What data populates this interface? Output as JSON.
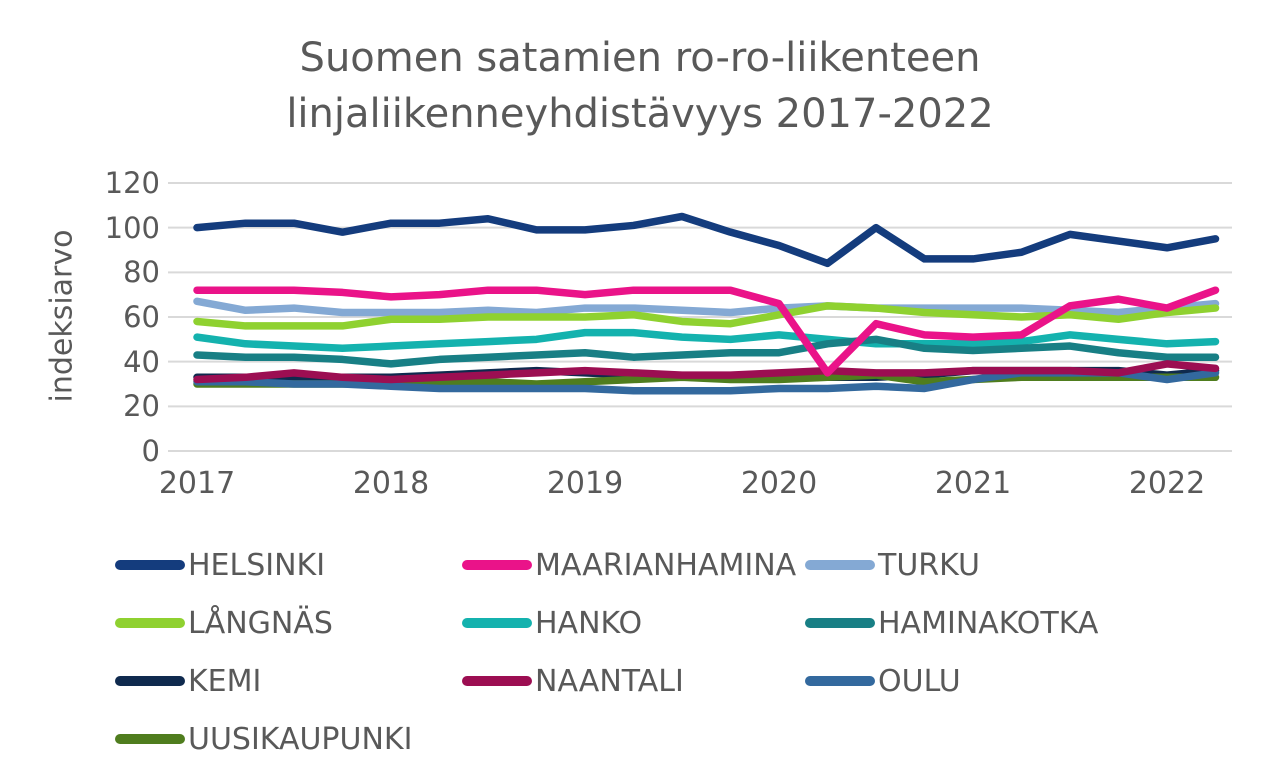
{
  "chart": {
    "title_line1": "Suomen satamien ro-ro-liikenteen",
    "title_line2": "linjaliikenneyhdistävyys 2017-2022",
    "ylabel": "indeksiarvo",
    "text_color": "#595959",
    "gridline_color": "#D9D9D9",
    "background_color": "#FFFFFF"
  },
  "chart_data": {
    "type": "line",
    "title": "Suomen satamien ro-ro-liikenteen linjaliikenneyhdistävyys 2017-2022",
    "xlabel": "",
    "ylabel": "indeksiarvo",
    "x_tick_labels": [
      "2017",
      "2018",
      "2019",
      "2020",
      "2021",
      "2022"
    ],
    "x_unit": "quarterly points from 2017Q1 to 2022Q2",
    "y_ticks": [
      0,
      20,
      40,
      60,
      80,
      100,
      120
    ],
    "ylim": [
      0,
      120
    ],
    "grid": "horizontal",
    "legend_position": "bottom",
    "series": [
      {
        "name": "HELSINKI",
        "color": "#143C7D",
        "values": [
          100,
          102,
          102,
          98,
          102,
          102,
          104,
          99,
          99,
          101,
          105,
          98,
          92,
          84,
          100,
          86,
          86,
          89,
          97,
          94,
          91,
          95
        ]
      },
      {
        "name": "MAARIANHAMINA",
        "color": "#EA1389",
        "values": [
          72,
          72,
          72,
          71,
          69,
          70,
          72,
          72,
          70,
          72,
          72,
          72,
          66,
          35,
          57,
          52,
          51,
          52,
          65,
          68,
          64,
          72
        ]
      },
      {
        "name": "TURKU",
        "color": "#84A9D4",
        "values": [
          67,
          63,
          64,
          62,
          62,
          62,
          63,
          62,
          64,
          64,
          63,
          62,
          64,
          65,
          64,
          64,
          64,
          64,
          63,
          62,
          64,
          66
        ]
      },
      {
        "name": "LÅNGNÄS",
        "color": "#8FD130",
        "values": [
          58,
          56,
          56,
          56,
          59,
          59,
          60,
          60,
          60,
          61,
          58,
          57,
          61,
          65,
          64,
          62,
          61,
          60,
          61,
          59,
          62,
          64
        ]
      },
      {
        "name": "HANKO",
        "color": "#14B2AE",
        "values": [
          51,
          48,
          47,
          46,
          47,
          48,
          49,
          50,
          53,
          53,
          51,
          50,
          52,
          50,
          48,
          48,
          48,
          49,
          52,
          50,
          48,
          49
        ]
      },
      {
        "name": "HAMINAKOTKA",
        "color": "#187F85",
        "values": [
          43,
          42,
          42,
          41,
          39,
          41,
          42,
          43,
          44,
          42,
          43,
          44,
          44,
          48,
          50,
          46,
          45,
          46,
          47,
          44,
          42,
          42
        ]
      },
      {
        "name": "KEMI",
        "color": "#0F2A4E",
        "values": [
          33,
          33,
          33,
          33,
          33,
          34,
          35,
          36,
          35,
          34,
          33,
          33,
          33,
          33,
          33,
          34,
          36,
          36,
          36,
          36,
          34,
          36
        ]
      },
      {
        "name": "NAANTALI",
        "color": "#9C0E52",
        "values": [
          32,
          33,
          35,
          33,
          32,
          33,
          34,
          35,
          36,
          35,
          34,
          34,
          35,
          36,
          35,
          35,
          36,
          36,
          36,
          35,
          39,
          37
        ]
      },
      {
        "name": "OULU",
        "color": "#33699E",
        "values": [
          31,
          31,
          30,
          30,
          29,
          28,
          28,
          28,
          28,
          27,
          27,
          27,
          28,
          28,
          29,
          28,
          32,
          35,
          35,
          35,
          32,
          35
        ]
      },
      {
        "name": "UUSIKAUPUNKI",
        "color": "#4F7D1E",
        "values": [
          30,
          30,
          30,
          30,
          30,
          30,
          31,
          30,
          31,
          32,
          33,
          32,
          32,
          33,
          34,
          31,
          32,
          33,
          33,
          33,
          33,
          33
        ]
      }
    ]
  }
}
